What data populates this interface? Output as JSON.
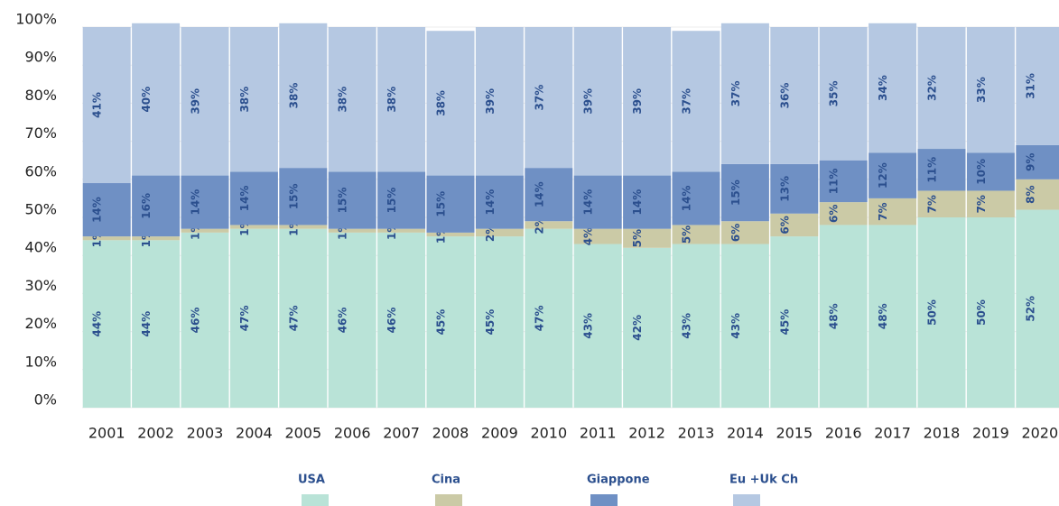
{
  "chart_data": {
    "type": "stacked_bar",
    "categories": [
      "2001",
      "2002",
      "2003",
      "2004",
      "2005",
      "2006",
      "2007",
      "2008",
      "2009",
      "2010",
      "2011",
      "2012",
      "2013",
      "2014",
      "2015",
      "2016",
      "2017",
      "2018",
      "2019",
      "2020"
    ],
    "series": [
      {
        "name": "USA",
        "color": "#b9e3d7",
        "values": [
          44,
          44,
          46,
          47,
          47,
          46,
          46,
          45,
          45,
          47,
          43,
          42,
          43,
          43,
          45,
          48,
          48,
          50,
          50,
          52
        ],
        "value_labels": [
          "44%",
          "44%",
          "46%",
          "47%",
          "47%",
          "46%",
          "46%",
          "45%",
          "45%",
          "47%",
          "43%",
          "42%",
          "43%",
          "43%",
          "45%",
          "48%",
          "48%",
          "50%",
          "50%",
          "52%"
        ]
      },
      {
        "name": "Cina",
        "color": "#cbcaa6",
        "values": [
          1,
          1,
          1,
          1,
          1,
          1,
          1,
          1,
          2,
          2,
          4,
          5,
          5,
          6,
          6,
          6,
          7,
          7,
          7,
          8
        ],
        "value_labels": [
          "1%",
          "1%",
          "1%",
          "1%",
          "1%",
          "1%",
          "1%",
          "1%",
          "2%",
          "2%",
          "4%",
          "5%",
          "5%",
          "6%",
          "6%",
          "6%",
          "7%",
          "7%",
          "7%",
          "8%"
        ]
      },
      {
        "name": "Giappone",
        "color": "#6f90c4",
        "values": [
          14,
          16,
          14,
          14,
          15,
          15,
          15,
          15,
          14,
          14,
          14,
          14,
          14,
          15,
          13,
          11,
          12,
          11,
          10,
          9
        ],
        "value_labels": [
          "14%",
          "16%",
          "14%",
          "14%",
          "15%",
          "15%",
          "15%",
          "15%",
          "14%",
          "14%",
          "14%",
          "14%",
          "14%",
          "15%",
          "13%",
          "11%",
          "12%",
          "11%",
          "10%",
          "9%"
        ]
      },
      {
        "name": "Eu +Uk Ch",
        "color": "#b5c8e2",
        "values": [
          41,
          40,
          39,
          38,
          38,
          38,
          38,
          38,
          39,
          37,
          39,
          39,
          37,
          37,
          36,
          35,
          34,
          32,
          33,
          31
        ],
        "value_labels": [
          "41%",
          "40%",
          "39%",
          "38%",
          "38%",
          "38%",
          "38%",
          "38%",
          "39%",
          "37%",
          "39%",
          "39%",
          "37%",
          "37%",
          "36%",
          "35%",
          "34%",
          "32%",
          "33%",
          "31%"
        ]
      }
    ],
    "ylim": [
      0,
      100
    ],
    "yticks": [
      {
        "value": 0,
        "label": "0%"
      },
      {
        "value": 10,
        "label": "10%"
      },
      {
        "value": 20,
        "label": "20%"
      },
      {
        "value": 30,
        "label": "30%"
      },
      {
        "value": 40,
        "label": "40%"
      },
      {
        "value": 50,
        "label": "50%"
      },
      {
        "value": 60,
        "label": "60%"
      },
      {
        "value": 70,
        "label": "70%"
      },
      {
        "value": 80,
        "label": "80%"
      },
      {
        "value": 90,
        "label": "90%"
      },
      {
        "value": 100,
        "label": "100%"
      }
    ],
    "grid": true,
    "legend": "bottom"
  }
}
